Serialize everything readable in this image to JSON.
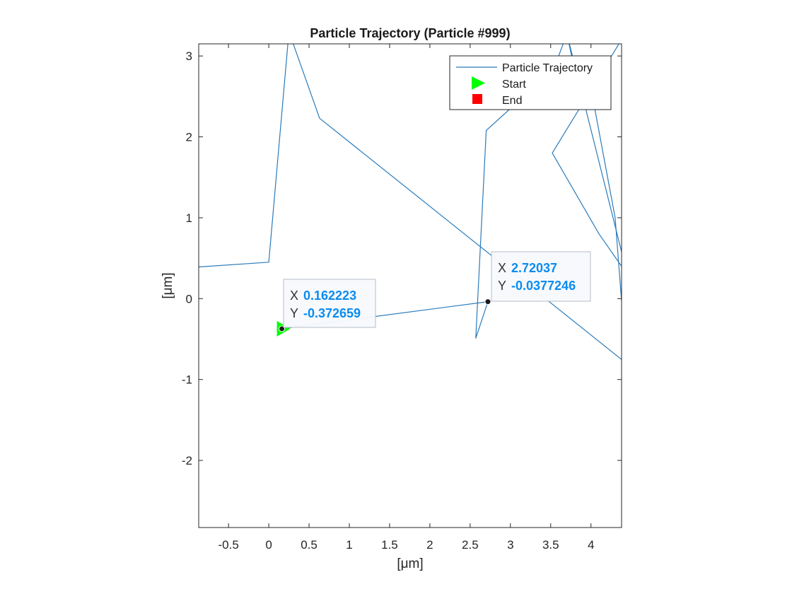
{
  "chart_data": {
    "type": "line",
    "title": "Particle Trajectory (Particle #999)",
    "xlabel": "[μm]",
    "ylabel": "[μm]",
    "xlim": [
      -0.87,
      4.38
    ],
    "ylim": [
      -2.83,
      3.15
    ],
    "x_ticks": [
      -0.5,
      0,
      0.5,
      1,
      1.5,
      2,
      2.5,
      3,
      3.5,
      4
    ],
    "y_ticks": [
      -2,
      -1,
      0,
      1,
      2,
      3
    ],
    "x_tick_labels": [
      "-0.5",
      "0",
      "0.5",
      "1",
      "1.5",
      "2",
      "2.5",
      "3",
      "3.5",
      "4"
    ],
    "y_tick_labels": [
      "-2",
      "-1",
      "0",
      "1",
      "2",
      "3"
    ],
    "grid": false,
    "legend_position": "top-right",
    "colors": {
      "trajectory": "#2b7bba",
      "start": "#00ff00",
      "end": "#ff0000",
      "datatip_value": "#0a8cf0"
    },
    "series": [
      {
        "name": "Particle Trajectory",
        "x": [
          0.162223,
          2.72037,
          2.57,
          2.7,
          3.0,
          3.4,
          3.58,
          3.68,
          3.9,
          4.2,
          4.44,
          3.52,
          4.1,
          4.45,
          3.7,
          3.76,
          3.8,
          4.0,
          4.3,
          4.44,
          0.63,
          0.25,
          0.0,
          -0.9
        ],
        "y": [
          -0.372659,
          -0.0377246,
          -0.49,
          2.08,
          2.35,
          2.7,
          2.95,
          3.22,
          3.27,
          3.3,
          3.3,
          1.8,
          0.8,
          0.3,
          3.28,
          3.0,
          2.8,
          2.6,
          1.0,
          -0.8,
          2.23,
          3.3,
          0.45,
          0.39
        ]
      }
    ],
    "legend": [
      {
        "label": "Particle Trajectory",
        "marker": "line"
      },
      {
        "label": "Start",
        "marker": "triangle-right"
      },
      {
        "label": "End",
        "marker": "square"
      }
    ],
    "start": {
      "x": 0.162223,
      "y": -0.372659
    },
    "datatips": [
      {
        "x_key": "X",
        "x_value": "0.162223",
        "y_key": "Y",
        "y_value": "-0.372659",
        "x": 0.162223,
        "y": -0.372659
      },
      {
        "x_key": "X",
        "x_value": "2.72037",
        "y_key": "Y",
        "y_value": "-0.0377246",
        "x": 2.72037,
        "y": -0.0377246
      }
    ]
  }
}
